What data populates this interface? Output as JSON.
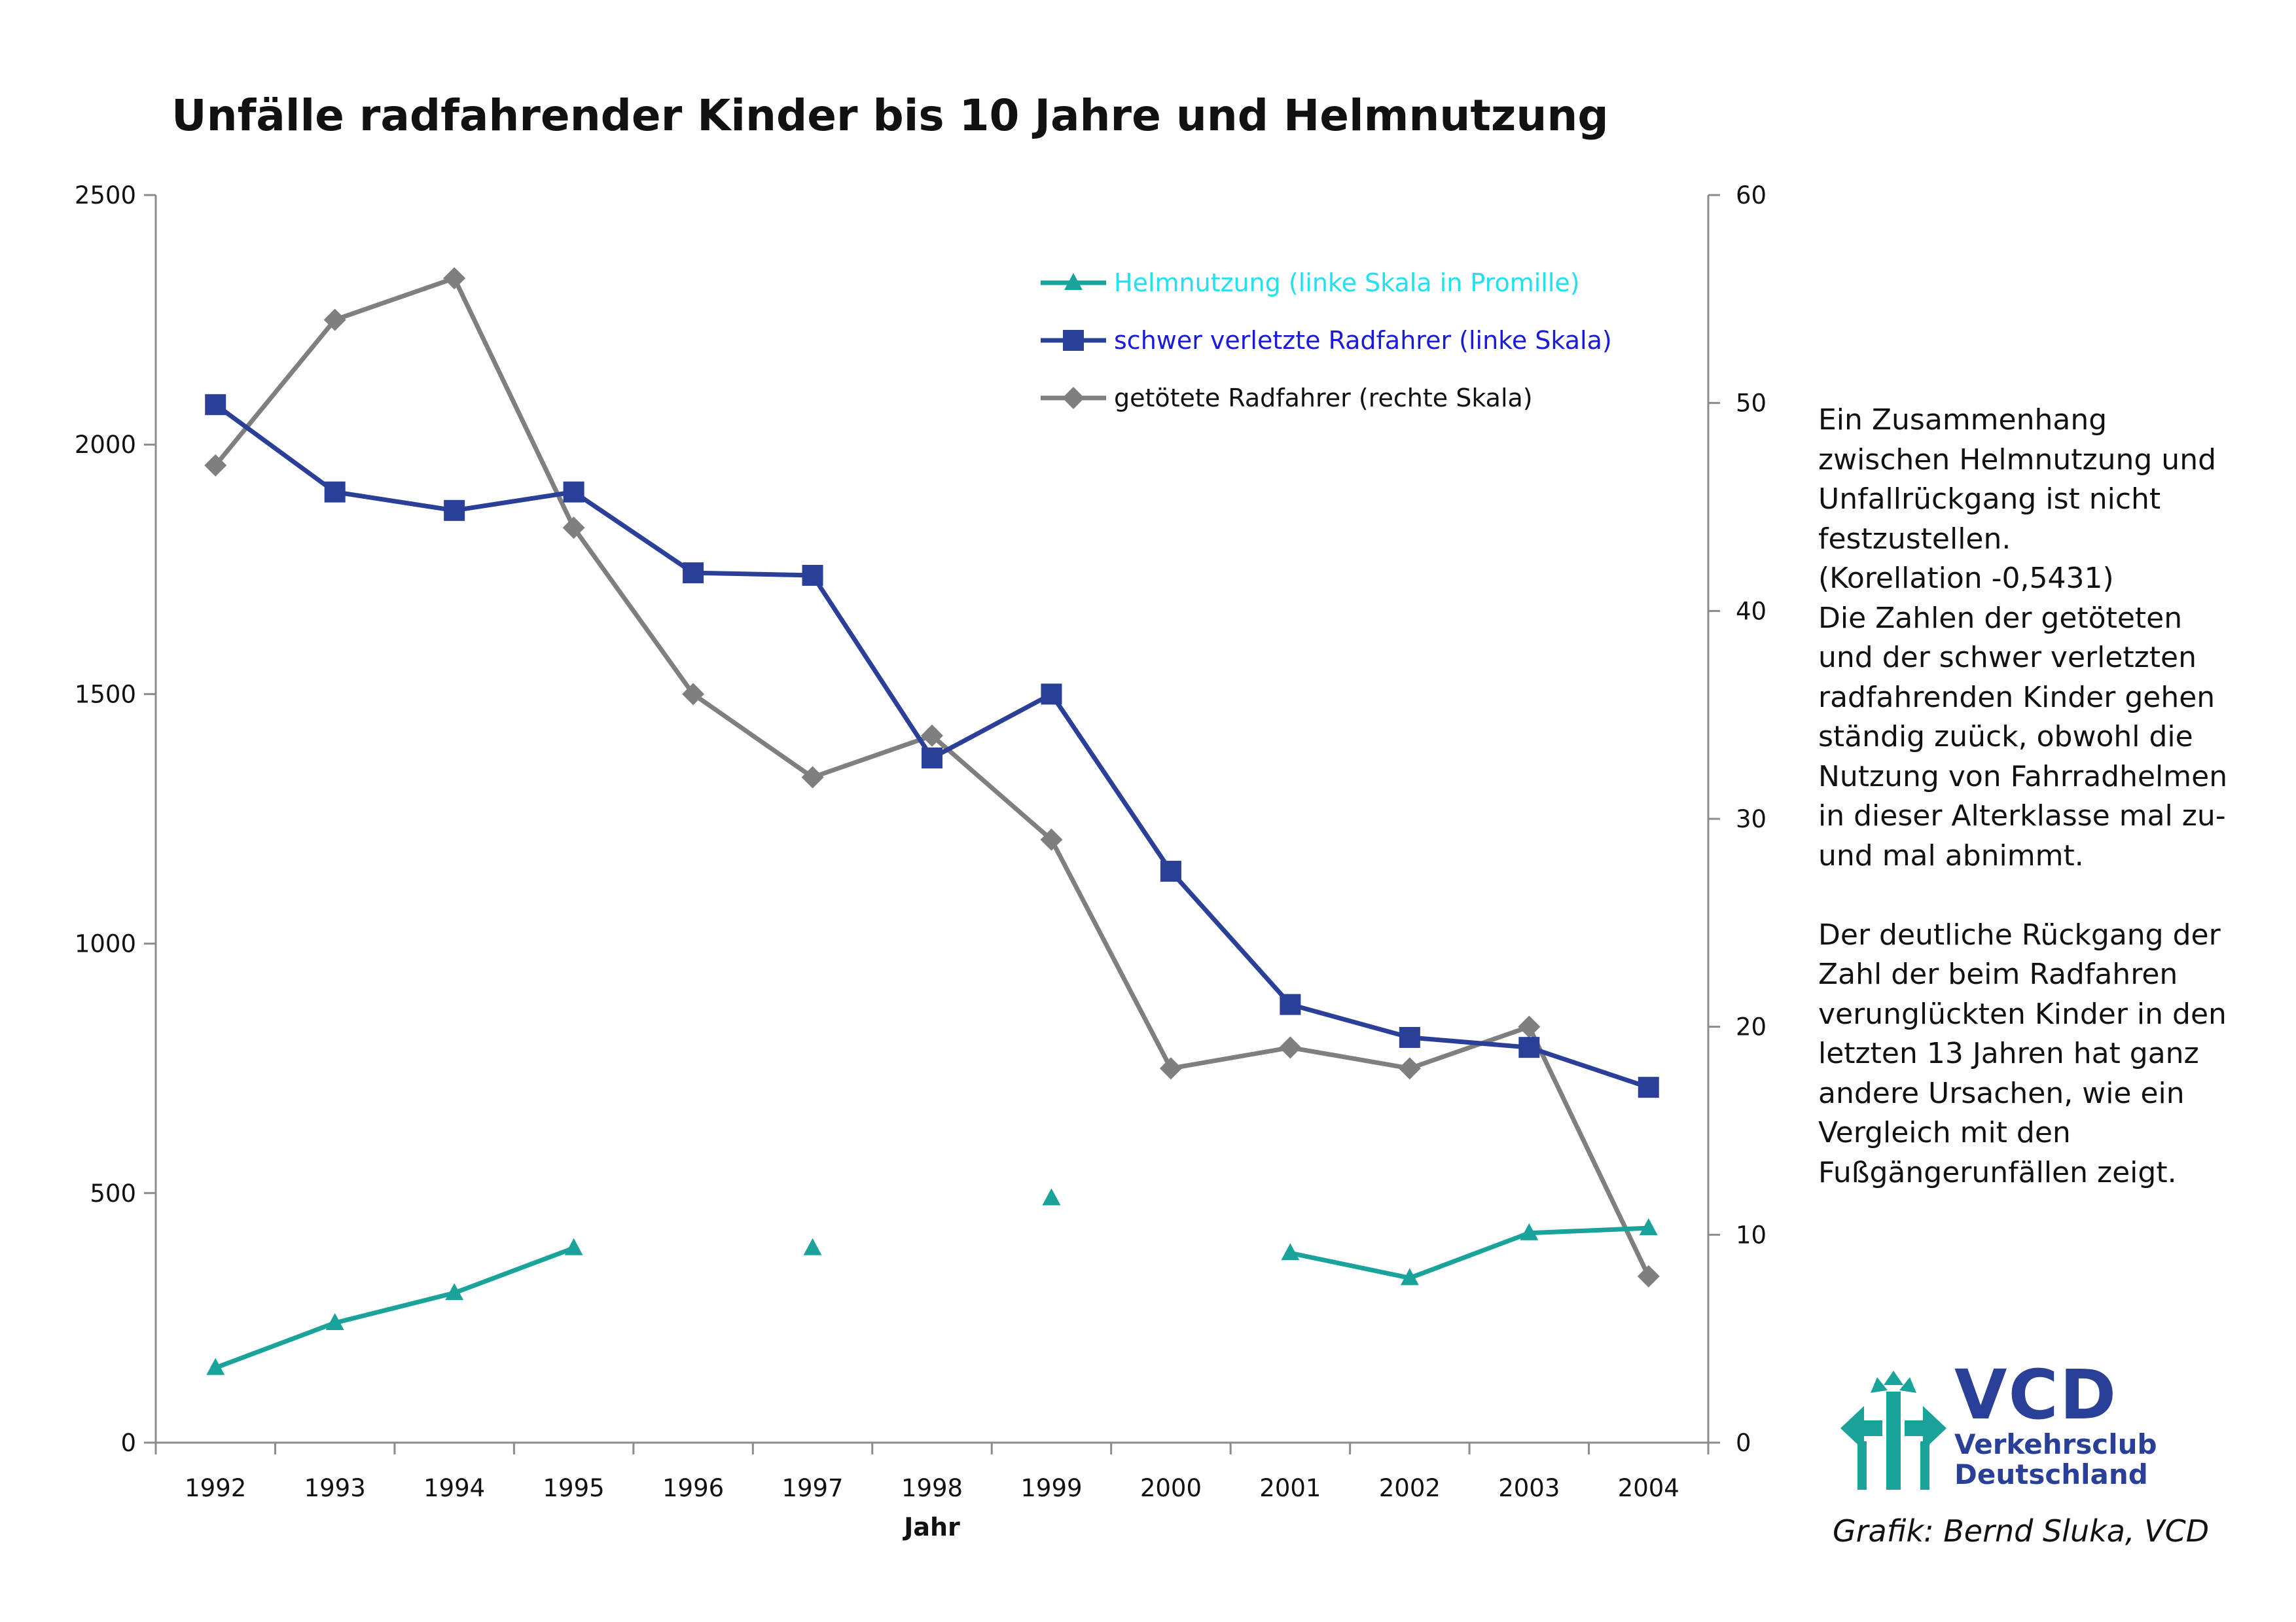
{
  "chart_data": {
    "type": "line",
    "title": "Unfälle radfahrender Kinder bis 10 Jahre und Helmnutzung",
    "xlabel": "Jahr",
    "categories": [
      "1992",
      "1993",
      "1994",
      "1995",
      "1996",
      "1997",
      "1998",
      "1999",
      "2000",
      "2001",
      "2002",
      "2003",
      "2004"
    ],
    "y_left": {
      "ylim": [
        0,
        2500
      ],
      "ticks": [
        "0",
        "500",
        "1000",
        "1500",
        "2000",
        "2500"
      ]
    },
    "y_right": {
      "ylim": [
        0,
        60
      ],
      "ticks": [
        "0",
        "10",
        "20",
        "30",
        "40",
        "50",
        "60"
      ]
    },
    "grid": false,
    "legend_position": "top-right",
    "series": [
      {
        "name": "Helmnutzung (linke Skala in Promille)",
        "axis": "left",
        "color": "#1aa39a",
        "label_color": "#22e0f0",
        "marker": "triangle",
        "values": [
          150,
          240,
          300,
          390,
          null,
          390,
          null,
          490,
          null,
          380,
          330,
          420,
          430
        ]
      },
      {
        "name": "schwer verletzte Radfahrer (linke Skala)",
        "axis": "left",
        "color": "#2a3f98",
        "label_color": "#1a1adc",
        "marker": "square",
        "values": [
          2080,
          1905,
          1868,
          1905,
          1743,
          1738,
          1372,
          1500,
          1145,
          878,
          812,
          792,
          712
        ]
      },
      {
        "name": "getötete Radfahrer (rechte Skala)",
        "axis": "right",
        "color": "#7f7f7f",
        "label_color": "#111111",
        "marker": "diamond",
        "values": [
          47,
          54,
          56,
          44,
          36,
          32,
          34,
          29,
          18,
          19,
          18,
          20,
          8
        ]
      }
    ]
  },
  "side_note": "Ein Zusammenhang\nzwischen Helmnutzung und\nUnfallrückgang ist nicht\nfestzustellen.\n(Korellation -0,5431)\nDie Zahlen der getöteten\nund der schwer verletzten\nradfahrenden Kinder gehen\nständig zuück, obwohl die\nNutzung von Fahrradhelmen\nin dieser Alterklasse mal zu-\nund mal abnimmt.\n\nDer deutliche Rückgang der\nZahl der beim Radfahren\nverunglückten Kinder in den\nletzten 13 Jahren hat ganz\nandere Ursachen, wie ein\nVergleich mit den\nFußgängerunfällen zeigt.",
  "credit": "Grafik: Bernd Sluka, VCD",
  "logo": {
    "abbr": "VCD",
    "line1": "Verkehrsclub",
    "line2": "Deutschland",
    "color": "#2a3f98",
    "emblem_color": "#1aa39a"
  }
}
